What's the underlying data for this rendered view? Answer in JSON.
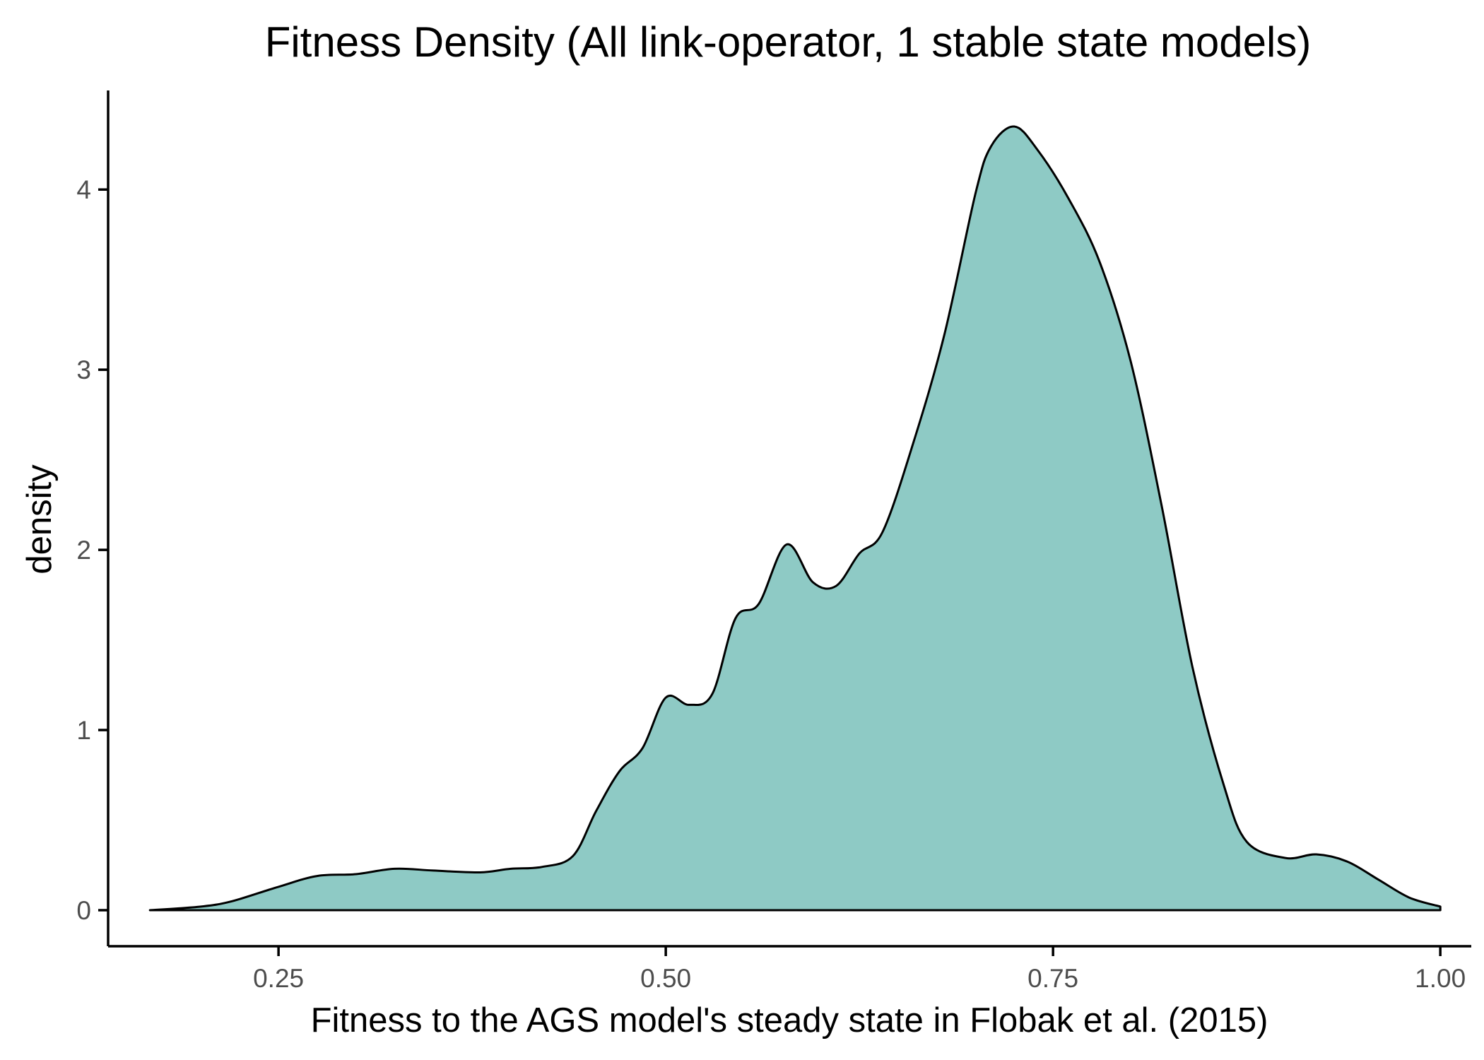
{
  "chart_data": {
    "type": "area",
    "title": "Fitness Density  (All link-operator, 1 stable state models)",
    "xlabel": "Fitness to the AGS model's steady state in Flobak et al. (2015)",
    "ylabel": "density",
    "xlim": [
      0.14,
      1.02
    ],
    "ylim": [
      -0.2,
      4.55
    ],
    "x_ticks": [
      0.25,
      0.5,
      0.75,
      1.0
    ],
    "x_tick_labels": [
      "0.25",
      "0.50",
      "0.75",
      "1.00"
    ],
    "y_ticks": [
      0,
      1,
      2,
      3,
      4
    ],
    "y_tick_labels": [
      "0",
      "1",
      "2",
      "3",
      "4"
    ],
    "grid": false,
    "fill_color": "#8ecac5",
    "line_color": "#000000",
    "series": [
      {
        "x": [
          0.167,
          0.2,
          0.22,
          0.25,
          0.275,
          0.3,
          0.325,
          0.35,
          0.38,
          0.4,
          0.42,
          0.44,
          0.455,
          0.47,
          0.485,
          0.5,
          0.515,
          0.53,
          0.545,
          0.56,
          0.578,
          0.595,
          0.61,
          0.625,
          0.64,
          0.66,
          0.68,
          0.7,
          0.71,
          0.725,
          0.74,
          0.76,
          0.78,
          0.8,
          0.82,
          0.84,
          0.86,
          0.875,
          0.9,
          0.92,
          0.94,
          0.96,
          0.98,
          1.0
        ],
        "y": [
          0.0,
          0.02,
          0.05,
          0.13,
          0.19,
          0.2,
          0.23,
          0.22,
          0.21,
          0.23,
          0.24,
          0.3,
          0.55,
          0.77,
          0.9,
          1.18,
          1.14,
          1.2,
          1.62,
          1.7,
          2.03,
          1.82,
          1.8,
          1.98,
          2.1,
          2.6,
          3.2,
          3.98,
          4.24,
          4.35,
          4.22,
          3.95,
          3.6,
          3.05,
          2.25,
          1.35,
          0.7,
          0.38,
          0.29,
          0.31,
          0.27,
          0.17,
          0.07,
          0.02
        ]
      }
    ]
  }
}
